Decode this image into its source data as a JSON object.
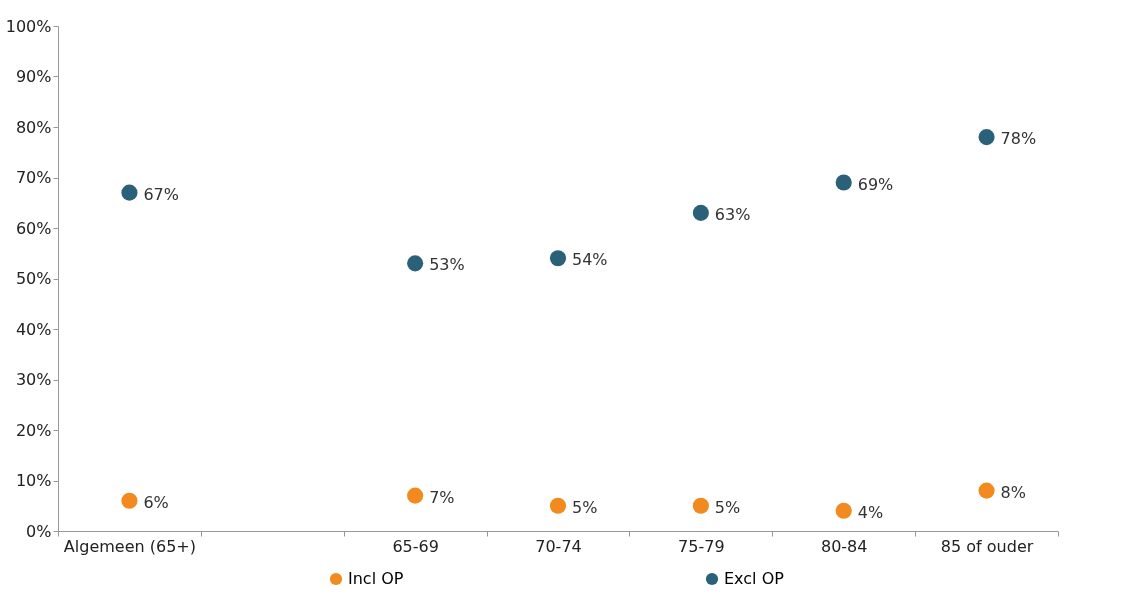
{
  "chart_data": {
    "type": "scatter",
    "categories": [
      "Algemeen (65+)",
      null,
      "65-69",
      "70-74",
      "75-79",
      "80-84",
      "85 of ouder"
    ],
    "series": [
      {
        "name": "Incl OP",
        "color": "#f28a1f",
        "values": [
          6,
          null,
          7,
          5,
          5,
          4,
          8
        ],
        "value_labels": [
          "6%",
          null,
          "7%",
          "5%",
          "5%",
          "4%",
          "8%"
        ]
      },
      {
        "name": "Excl OP",
        "color": "#2b6178",
        "values": [
          67,
          null,
          53,
          54,
          63,
          69,
          78
        ],
        "value_labels": [
          "67%",
          null,
          "53%",
          "54%",
          "63%",
          "69%",
          "78%"
        ]
      }
    ],
    "ylim": [
      0,
      100
    ],
    "yticks": [
      {
        "value": 0,
        "label": "0%"
      },
      {
        "value": 10,
        "label": "10%"
      },
      {
        "value": 20,
        "label": "20%"
      },
      {
        "value": 30,
        "label": "30%"
      },
      {
        "value": 40,
        "label": "40%"
      },
      {
        "value": 50,
        "label": "50%"
      },
      {
        "value": 60,
        "label": "60%"
      },
      {
        "value": 70,
        "label": "70%"
      },
      {
        "value": 80,
        "label": "80%"
      },
      {
        "value": 90,
        "label": "90%"
      },
      {
        "value": 100,
        "label": "100%"
      }
    ],
    "marker": "circle",
    "legend": "bottom"
  }
}
